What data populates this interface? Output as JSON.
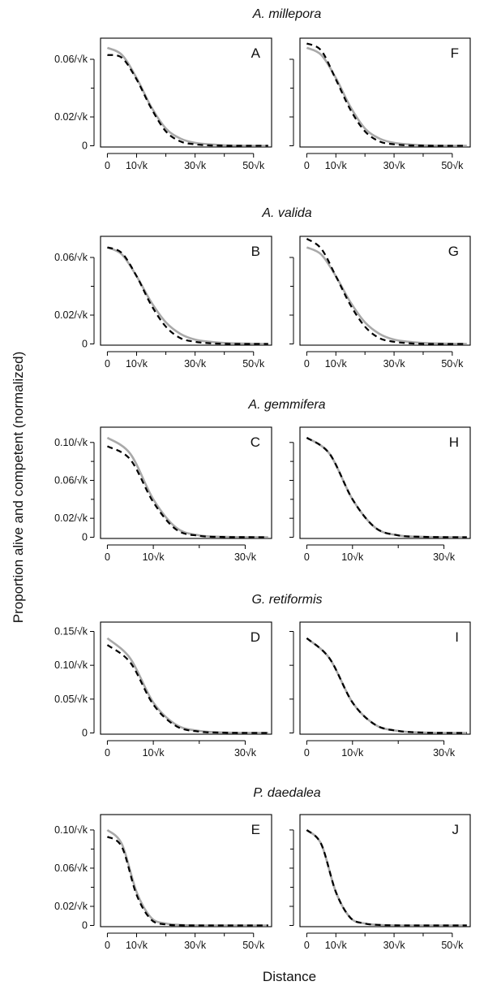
{
  "figure": {
    "ylabel": "Proportion alive and competent (normalized)",
    "xlabel": "Distance"
  },
  "chart_data": [
    {
      "type": "line",
      "panel": "A",
      "species_title": "A. millepora",
      "x": [
        0,
        5,
        10,
        15,
        20,
        25,
        30,
        35,
        40,
        45,
        50,
        55
      ],
      "xticks": [
        "0",
        "10√k",
        "30√k",
        "50√k"
      ],
      "xtick_values": [
        0,
        10,
        30,
        50
      ],
      "xlim": [
        0,
        55
      ],
      "yticks": [
        "0",
        "0.02/√k",
        "0.06/√k"
      ],
      "ytick_values": [
        0,
        0.02,
        0.06
      ],
      "ylim": [
        0,
        0.072
      ],
      "series": [
        {
          "style": "solid-gray",
          "values": [
            0.068,
            0.063,
            0.047,
            0.027,
            0.012,
            0.005,
            0.002,
            0.001,
            0.0003,
            0.0001,
            0,
            0
          ]
        },
        {
          "style": "dashed-black",
          "values": [
            0.063,
            0.061,
            0.046,
            0.026,
            0.01,
            0.003,
            0.001,
            0.0003,
            0.0001,
            0,
            0,
            0
          ]
        }
      ]
    },
    {
      "type": "line",
      "panel": "F",
      "species_title": "",
      "x": [
        0,
        5,
        10,
        15,
        20,
        25,
        30,
        35,
        40,
        45,
        50,
        55
      ],
      "xticks": [
        "0",
        "10√k",
        "30√k",
        "50√k"
      ],
      "xtick_values": [
        0,
        10,
        30,
        50
      ],
      "xlim": [
        0,
        55
      ],
      "yticks": [],
      "ytick_values": [
        0,
        0.02,
        0.06
      ],
      "ylim": [
        0,
        0.072
      ],
      "series": [
        {
          "style": "solid-gray",
          "values": [
            0.068,
            0.063,
            0.047,
            0.027,
            0.012,
            0.005,
            0.002,
            0.001,
            0.0003,
            0.0001,
            0,
            0
          ]
        },
        {
          "style": "dashed-black",
          "values": [
            0.071,
            0.066,
            0.046,
            0.025,
            0.01,
            0.003,
            0.001,
            0.0003,
            0.0001,
            0,
            0,
            0
          ]
        }
      ]
    },
    {
      "type": "line",
      "panel": "B",
      "species_title": "A. valida",
      "x": [
        0,
        5,
        10,
        15,
        20,
        25,
        30,
        35,
        40,
        45,
        50,
        55
      ],
      "xticks": [
        "0",
        "10√k",
        "30√k",
        "50√k"
      ],
      "xtick_values": [
        0,
        10,
        30,
        50
      ],
      "xlim": [
        0,
        55
      ],
      "yticks": [
        "0",
        "0.02/√k",
        "0.06/√k"
      ],
      "ytick_values": [
        0,
        0.02,
        0.06
      ],
      "ylim": [
        0,
        0.072
      ],
      "series": [
        {
          "style": "solid-gray",
          "values": [
            0.067,
            0.062,
            0.047,
            0.029,
            0.015,
            0.007,
            0.003,
            0.0015,
            0.0007,
            0.0003,
            0.0001,
            0
          ]
        },
        {
          "style": "dashed-black",
          "values": [
            0.067,
            0.063,
            0.047,
            0.027,
            0.012,
            0.004,
            0.0015,
            0.0005,
            0.0001,
            0,
            0,
            0
          ]
        }
      ]
    },
    {
      "type": "line",
      "panel": "G",
      "species_title": "",
      "x": [
        0,
        5,
        10,
        15,
        20,
        25,
        30,
        35,
        40,
        45,
        50,
        55
      ],
      "xticks": [
        "0",
        "10√k",
        "30√k",
        "50√k"
      ],
      "xtick_values": [
        0,
        10,
        30,
        50
      ],
      "xlim": [
        0,
        55
      ],
      "yticks": [],
      "ytick_values": [
        0,
        0.02,
        0.06
      ],
      "ylim": [
        0,
        0.072
      ],
      "series": [
        {
          "style": "solid-gray",
          "values": [
            0.067,
            0.062,
            0.047,
            0.029,
            0.015,
            0.007,
            0.003,
            0.0015,
            0.0007,
            0.0003,
            0.0001,
            0
          ]
        },
        {
          "style": "dashed-black",
          "values": [
            0.073,
            0.066,
            0.047,
            0.027,
            0.012,
            0.004,
            0.0015,
            0.0005,
            0.0001,
            0,
            0,
            0
          ]
        }
      ]
    },
    {
      "type": "line",
      "panel": "C",
      "species_title": "A. gemmifera",
      "x": [
        0,
        5,
        10,
        15,
        20,
        25,
        30,
        35,
        40
      ],
      "xticks": [
        "0",
        "10√k",
        "30√k"
      ],
      "xtick_values": [
        0,
        10,
        30
      ],
      "xlim": [
        0,
        35
      ],
      "yticks": [
        "0",
        "0.02/√k",
        "0.06/√k",
        "0.10/√k"
      ],
      "ytick_values": [
        0,
        0.02,
        0.06,
        0.1
      ],
      "ylim": [
        0,
        0.112
      ],
      "series": [
        {
          "style": "solid-gray",
          "values": [
            0.105,
            0.088,
            0.04,
            0.01,
            0.002,
            0.0005,
            0.0001,
            0,
            0
          ]
        },
        {
          "style": "dashed-black",
          "values": [
            0.096,
            0.082,
            0.037,
            0.008,
            0.0015,
            0.0003,
            0.0001,
            0,
            0
          ]
        }
      ]
    },
    {
      "type": "line",
      "panel": "H",
      "species_title": "",
      "x": [
        0,
        5,
        10,
        15,
        20,
        25,
        30,
        35,
        40
      ],
      "xticks": [
        "0",
        "10√k",
        "30√k"
      ],
      "xtick_values": [
        0,
        10,
        30
      ],
      "xlim": [
        0,
        35
      ],
      "yticks": [],
      "ytick_values": [
        0,
        0.02,
        0.06,
        0.1
      ],
      "ylim": [
        0,
        0.112
      ],
      "series": [
        {
          "style": "solid-gray",
          "values": [
            0.105,
            0.088,
            0.04,
            0.01,
            0.002,
            0.0005,
            0.0001,
            0,
            0
          ]
        },
        {
          "style": "dashed-black",
          "values": [
            0.105,
            0.088,
            0.04,
            0.01,
            0.002,
            0.0005,
            0.0001,
            0,
            0
          ]
        }
      ]
    },
    {
      "type": "line",
      "panel": "D",
      "species_title": "G. retiformis",
      "x": [
        0,
        5,
        10,
        15,
        20,
        25,
        30,
        35,
        40
      ],
      "xticks": [
        "0",
        "10√k",
        "30√k"
      ],
      "xtick_values": [
        0,
        10,
        30
      ],
      "xlim": [
        0,
        35
      ],
      "yticks": [
        "0",
        "0.05/√k",
        "0.10/√k",
        "0.15/√k"
      ],
      "ytick_values": [
        0,
        0.05,
        0.1,
        0.15
      ],
      "ylim": [
        0,
        0.158
      ],
      "series": [
        {
          "style": "solid-gray",
          "values": [
            0.14,
            0.11,
            0.045,
            0.012,
            0.003,
            0.0007,
            0.0001,
            0,
            0
          ]
        },
        {
          "style": "dashed-black",
          "values": [
            0.13,
            0.104,
            0.042,
            0.01,
            0.002,
            0.0005,
            0.0001,
            0,
            0
          ]
        }
      ]
    },
    {
      "type": "line",
      "panel": "I",
      "species_title": "",
      "x": [
        0,
        5,
        10,
        15,
        20,
        25,
        30,
        35,
        40
      ],
      "xticks": [
        "0",
        "10√k",
        "30√k"
      ],
      "xtick_values": [
        0,
        10,
        30
      ],
      "xlim": [
        0,
        35
      ],
      "yticks": [],
      "ytick_values": [
        0,
        0.05,
        0.1,
        0.15
      ],
      "ylim": [
        0,
        0.158
      ],
      "series": [
        {
          "style": "solid-gray",
          "values": [
            0.14,
            0.11,
            0.045,
            0.012,
            0.003,
            0.0007,
            0.0001,
            0,
            0
          ]
        },
        {
          "style": "dashed-black",
          "values": [
            0.14,
            0.11,
            0.045,
            0.012,
            0.003,
            0.0007,
            0.0001,
            0,
            0
          ]
        }
      ]
    },
    {
      "type": "line",
      "panel": "E",
      "species_title": "P. daedalea",
      "x": [
        0,
        5,
        10,
        15,
        20,
        25,
        30,
        35,
        40,
        45,
        50,
        55
      ],
      "xticks": [
        "0",
        "10√k",
        "30√k",
        "50√k"
      ],
      "xtick_values": [
        0,
        10,
        30,
        50
      ],
      "xlim": [
        0,
        55
      ],
      "yticks": [
        "0",
        "0.02/√k",
        "0.06/√k",
        "0.10/√k"
      ],
      "ytick_values": [
        0,
        0.02,
        0.06,
        0.1
      ],
      "ylim": [
        0,
        0.112
      ],
      "series": [
        {
          "style": "solid-gray",
          "values": [
            0.1,
            0.085,
            0.035,
            0.008,
            0.002,
            0.0005,
            0.0001,
            0,
            0,
            0,
            0,
            0
          ]
        },
        {
          "style": "dashed-black",
          "values": [
            0.093,
            0.082,
            0.032,
            0.006,
            0.001,
            0.0002,
            0,
            0,
            0,
            0,
            0,
            0
          ]
        }
      ]
    },
    {
      "type": "line",
      "panel": "J",
      "species_title": "",
      "x": [
        0,
        5,
        10,
        15,
        20,
        25,
        30,
        35,
        40,
        45,
        50,
        55
      ],
      "xticks": [
        "0",
        "10√k",
        "30√k",
        "50√k"
      ],
      "xtick_values": [
        0,
        10,
        30,
        50
      ],
      "xlim": [
        0,
        55
      ],
      "yticks": [],
      "ytick_values": [
        0,
        0.02,
        0.06,
        0.1
      ],
      "ylim": [
        0,
        0.112
      ],
      "series": [
        {
          "style": "solid-gray",
          "values": [
            0.1,
            0.085,
            0.035,
            0.008,
            0.002,
            0.0005,
            0.0001,
            0,
            0,
            0,
            0,
            0
          ]
        },
        {
          "style": "dashed-black",
          "values": [
            0.1,
            0.085,
            0.035,
            0.008,
            0.002,
            0.0005,
            0.0001,
            0,
            0,
            0,
            0,
            0
          ]
        }
      ]
    }
  ]
}
